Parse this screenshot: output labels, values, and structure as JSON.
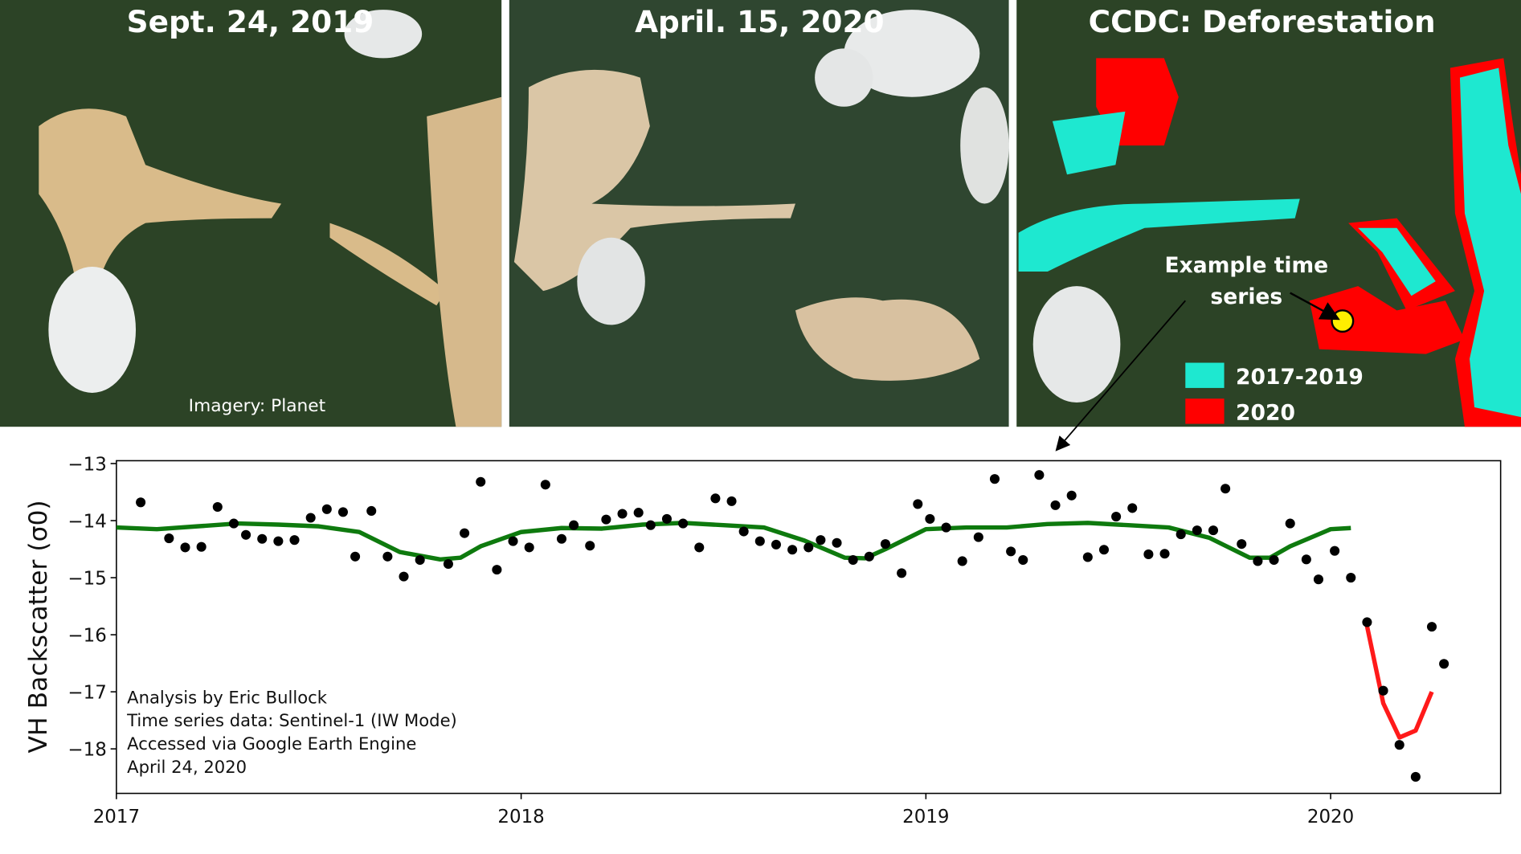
{
  "panels": [
    {
      "title": "Sept. 24, 2019",
      "caption": "Imagery: Planet"
    },
    {
      "title": "April. 15, 2020"
    },
    {
      "title": "CCDC: Deforestation",
      "annotation": "Example time series",
      "legend": [
        "2017-2019",
        "2020"
      ],
      "legend_colors": [
        "#1ee8d0",
        "#ff0000"
      ]
    }
  ],
  "chart_data": {
    "type": "scatter",
    "y_label": "VH Backscatter (σ0)",
    "annotations": [
      "Analysis by Eric Bullock",
      "Time series data: Sentinel-1 (IW Mode)",
      "Accessed via Google Earth Engine",
      "April 24, 2020"
    ],
    "xlim": [
      2017,
      2020.42
    ],
    "xticks": [
      2017,
      2018,
      2019,
      2020
    ],
    "ylim": [
      -18.78,
      -12.95
    ],
    "yticks": [
      {
        "value": -13,
        "label": "−13"
      },
      {
        "value": -14,
        "label": "−14"
      },
      {
        "value": -15,
        "label": "−15"
      },
      {
        "value": -16,
        "label": "−16"
      },
      {
        "value": -17,
        "label": "−17"
      },
      {
        "value": -18,
        "label": "−18"
      }
    ],
    "series": [
      {
        "type": "scatter",
        "color": "#000000",
        "x": [
          2017.06,
          2017.13,
          2017.17,
          2017.21,
          2017.25,
          2017.29,
          2017.32,
          2017.36,
          2017.4,
          2017.44,
          2017.48,
          2017.52,
          2017.56,
          2017.59,
          2017.63,
          2017.67,
          2017.71,
          2017.75,
          2017.82,
          2017.86,
          2017.9,
          2017.94,
          2017.98,
          2018.02,
          2018.06,
          2018.1,
          2018.13,
          2018.17,
          2018.21,
          2018.25,
          2018.29,
          2018.32,
          2018.36,
          2018.4,
          2018.44,
          2018.48,
          2018.52,
          2018.55,
          2018.59,
          2018.63,
          2018.67,
          2018.71,
          2018.74,
          2018.78,
          2018.82,
          2018.86,
          2018.9,
          2018.94,
          2018.98,
          2019.01,
          2019.05,
          2019.09,
          2019.13,
          2019.17,
          2019.21,
          2019.24,
          2019.28,
          2019.32,
          2019.36,
          2019.4,
          2019.44,
          2019.47,
          2019.51,
          2019.55,
          2019.59,
          2019.63,
          2019.67,
          2019.71,
          2019.74,
          2019.78,
          2019.82,
          2019.86,
          2019.9,
          2019.94,
          2019.97,
          2020.01,
          2020.05,
          2020.09,
          2020.13,
          2020.17,
          2020.21,
          2020.25,
          2020.28
        ],
        "values": [
          -13.68,
          -14.31,
          -14.47,
          -14.46,
          -13.76,
          -14.05,
          -14.25,
          -14.32,
          -14.36,
          -14.34,
          -13.95,
          -13.8,
          -13.85,
          -14.63,
          -13.83,
          -14.63,
          -14.98,
          -14.69,
          -14.76,
          -14.22,
          -13.32,
          -14.86,
          -14.36,
          -14.47,
          -13.37,
          -14.32,
          -14.08,
          -14.44,
          -13.98,
          -13.88,
          -13.86,
          -14.08,
          -13.97,
          -14.05,
          -14.47,
          -13.61,
          -13.66,
          -14.19,
          -14.36,
          -14.42,
          -14.51,
          -14.47,
          -14.34,
          -14.39,
          -14.69,
          -14.63,
          -14.41,
          -14.92,
          -13.71,
          -13.97,
          -14.12,
          -14.71,
          -14.29,
          -13.27,
          -14.54,
          -14.69,
          -13.2,
          -13.73,
          -13.56,
          -14.64,
          -14.51,
          -13.93,
          -13.78,
          -14.59,
          -14.58,
          -14.24,
          -14.17,
          -14.17,
          -13.44,
          -14.41,
          -14.71,
          -14.69,
          -14.05,
          -14.68,
          -15.03,
          -14.53,
          -15.0,
          -15.78,
          -16.98,
          -17.93,
          -18.49,
          -15.86,
          -16.51
        ]
      },
      {
        "type": "line",
        "color": "#0e7a0e",
        "x": [
          2017.0,
          2017.1,
          2017.2,
          2017.3,
          2017.4,
          2017.5,
          2017.6,
          2017.7,
          2017.8,
          2017.85,
          2017.9,
          2018.0,
          2018.1,
          2018.2,
          2018.3,
          2018.4,
          2018.5,
          2018.6,
          2018.7,
          2018.8,
          2018.85,
          2018.9,
          2019.0,
          2019.1,
          2019.2,
          2019.3,
          2019.4,
          2019.5,
          2019.6,
          2019.7,
          2019.8,
          2019.85,
          2019.9,
          2020.0,
          2020.05
        ],
        "values": [
          -14.12,
          -14.15,
          -14.1,
          -14.05,
          -14.07,
          -14.1,
          -14.2,
          -14.55,
          -14.68,
          -14.65,
          -14.45,
          -14.2,
          -14.13,
          -14.14,
          -14.07,
          -14.04,
          -14.08,
          -14.12,
          -14.35,
          -14.65,
          -14.66,
          -14.5,
          -14.15,
          -14.12,
          -14.12,
          -14.06,
          -14.04,
          -14.08,
          -14.12,
          -14.3,
          -14.65,
          -14.65,
          -14.45,
          -14.15,
          -14.13
        ]
      },
      {
        "type": "line",
        "color": "#ff1a1a",
        "x": [
          2020.09,
          2020.13,
          2020.17,
          2020.21,
          2020.25
        ],
        "values": [
          -15.85,
          -17.2,
          -17.8,
          -17.68,
          -17.0
        ]
      }
    ]
  }
}
